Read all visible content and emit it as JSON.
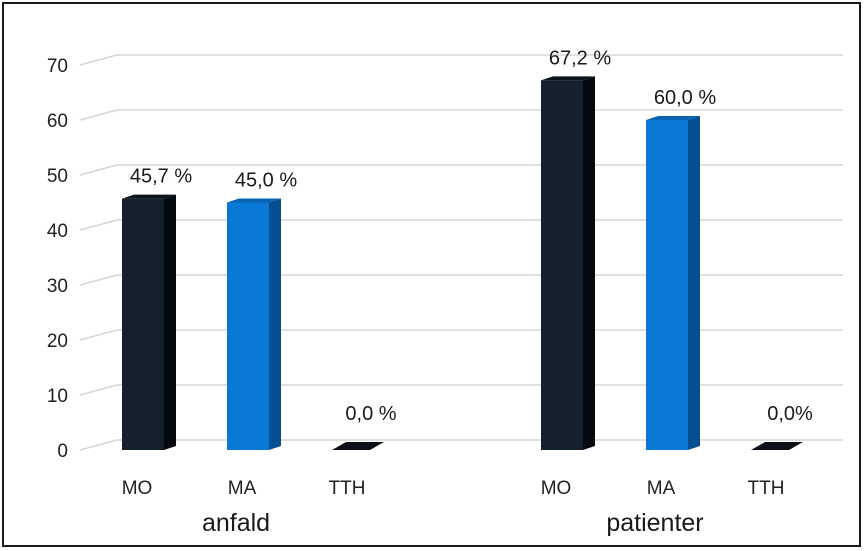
{
  "chart_data": {
    "type": "bar",
    "title": "",
    "xlabel": "",
    "ylabel": "",
    "ylim": [
      0,
      70
    ],
    "yticks": [
      0,
      10,
      20,
      30,
      40,
      50,
      60,
      70
    ],
    "grid": true,
    "groups": [
      {
        "label": "anfald",
        "bars": [
          {
            "category": "MO",
            "value": 45.7,
            "label": "45,7 %"
          },
          {
            "category": "MA",
            "value": 45.0,
            "label": "45,0 %"
          },
          {
            "category": "TTH",
            "value": 0.0,
            "label": "0,0 %"
          }
        ]
      },
      {
        "label": "patienter",
        "bars": [
          {
            "category": "MO",
            "value": 67.2,
            "label": "67,2 %"
          },
          {
            "category": "MA",
            "value": 60.0,
            "label": "60,0 %"
          },
          {
            "category": "TTH",
            "value": 0.0,
            "label": "0,0%"
          }
        ]
      }
    ],
    "colors": {
      "MO": {
        "front": "#15202f",
        "side": "#05090f",
        "top": "#0a121c"
      },
      "MA": {
        "front": "#0a78d4",
        "side": "#044e92",
        "top": "#0a64b4"
      },
      "TTH": {
        "front": "#15202f",
        "side": "#05090f",
        "top": "#0b1018"
      }
    },
    "grid_color": "#d6d6d6"
  }
}
